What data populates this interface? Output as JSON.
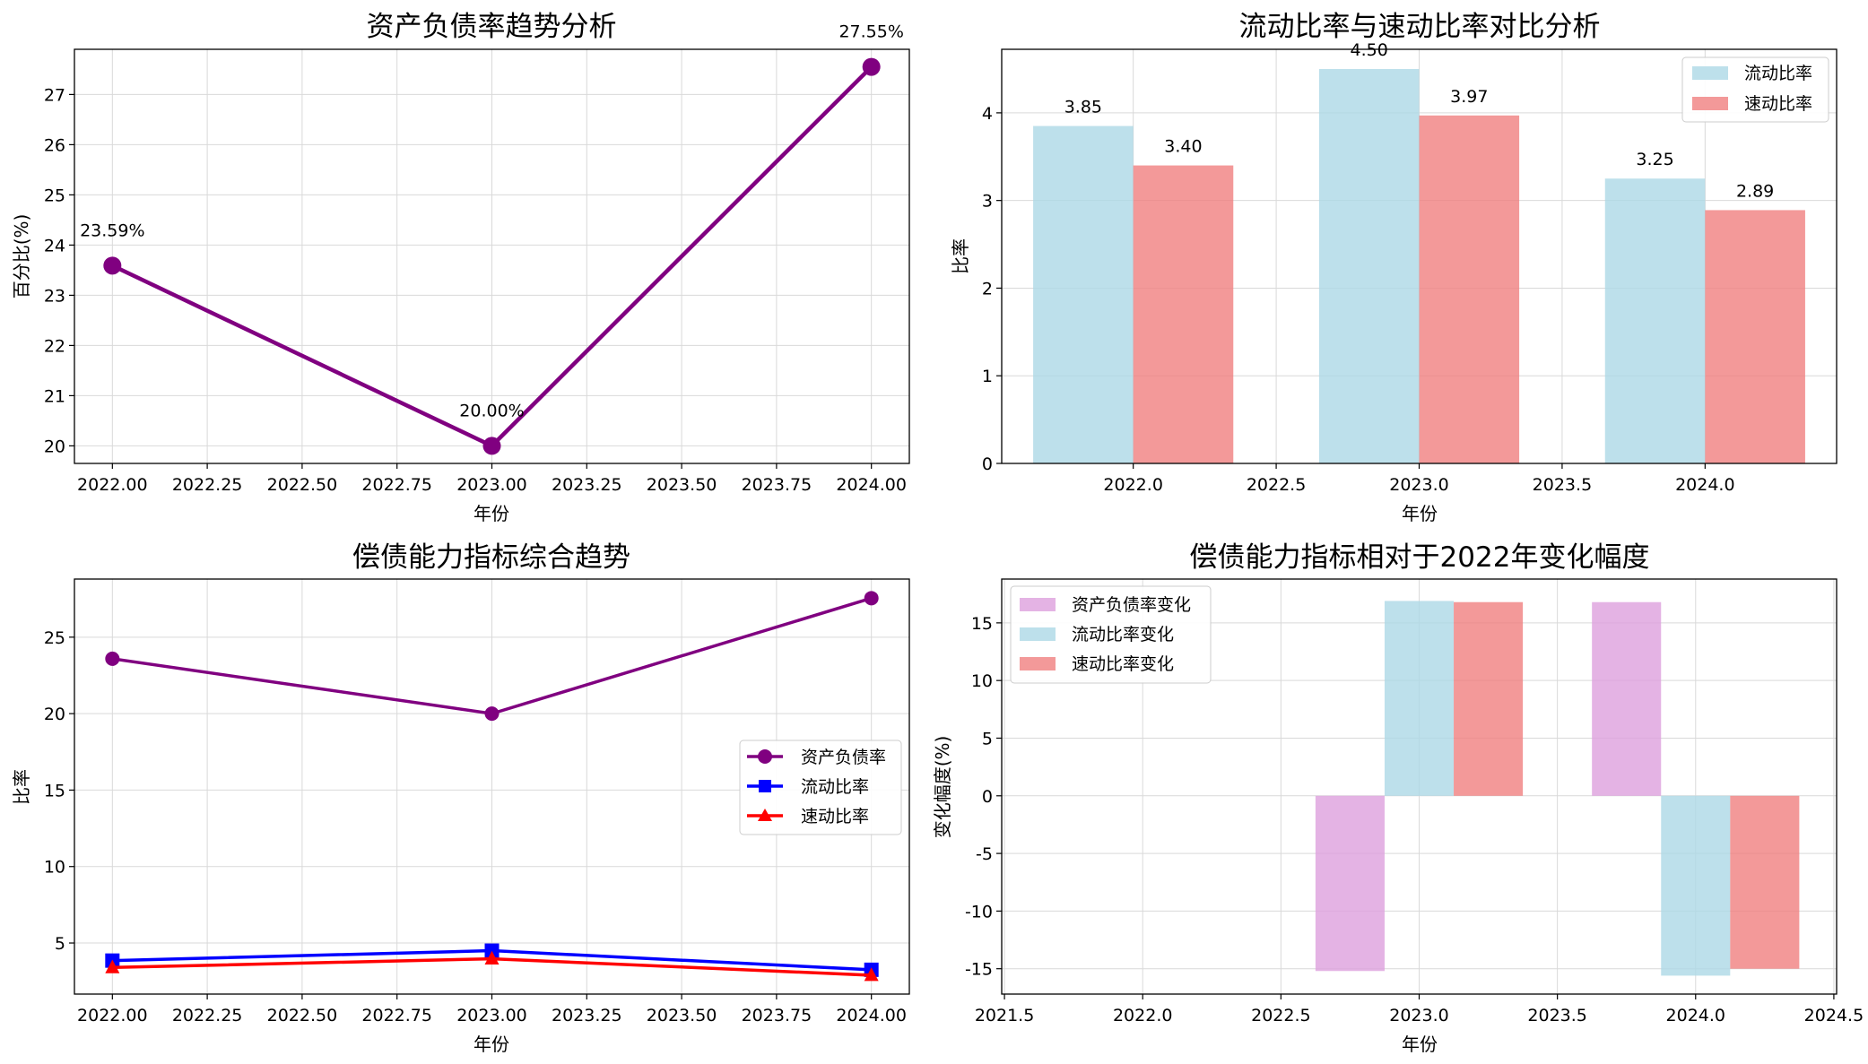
{
  "figure": {
    "colors": {
      "debt": "#800080",
      "current": "#0000ff",
      "quick": "#ff0000",
      "current_bar": "#add8e6",
      "quick_bar": "#f08080",
      "debt_bar": "#dda0dd"
    }
  },
  "chart_data": [
    {
      "type": "line",
      "title": "资产负债率趋势分析",
      "xlabel": "年份",
      "ylabel": "百分比(%)",
      "x": [
        2022,
        2023,
        2024
      ],
      "series": [
        {
          "values": [
            23.59,
            20.0,
            27.55
          ]
        }
      ],
      "data_labels": [
        "23.59%",
        "20.00%",
        "27.55%"
      ],
      "xlim": [
        2021.9,
        2024.1
      ],
      "ylim": [
        19.65,
        27.9
      ],
      "xticks": [
        2022.0,
        2022.25,
        2022.5,
        2022.75,
        2023.0,
        2023.25,
        2023.5,
        2023.75,
        2024.0
      ],
      "xtick_labels": [
        "2022.00",
        "2022.25",
        "2022.50",
        "2022.75",
        "2023.00",
        "2023.25",
        "2023.50",
        "2023.75",
        "2024.00"
      ],
      "yticks": [
        20,
        21,
        22,
        23,
        24,
        25,
        26,
        27
      ],
      "ytick_labels": [
        "20",
        "21",
        "22",
        "23",
        "24",
        "25",
        "26",
        "27"
      ],
      "grid": true,
      "marker": "circle",
      "color": "#800080"
    },
    {
      "type": "bar",
      "title": "流动比率与速动比率对比分析",
      "xlabel": "年份",
      "ylabel": "比率",
      "categories": [
        2022,
        2023,
        2024
      ],
      "bar_width": 0.35,
      "series": [
        {
          "name": "流动比率",
          "values": [
            3.85,
            4.5,
            3.25
          ],
          "labels": [
            "3.85",
            "4.50",
            "3.25"
          ],
          "color": "#add8e6",
          "offset": -0.175
        },
        {
          "name": "速动比率",
          "values": [
            3.4,
            3.97,
            2.89
          ],
          "labels": [
            "3.40",
            "3.97",
            "2.89"
          ],
          "color": "#f08080",
          "offset": 0.175
        }
      ],
      "xlim": [
        1021.54,
        1024.46
      ],
      "ylim": [
        0,
        4.725
      ],
      "xticks": [
        2022.0,
        2022.5,
        2023.0,
        2023.5,
        2024.0
      ],
      "xtick_labels": [
        "2022.0",
        "2022.5",
        "2023.0",
        "2023.5",
        "2024.0"
      ],
      "yticks": [
        0,
        1,
        2,
        3,
        4
      ],
      "ytick_labels": [
        "0",
        "1",
        "2",
        "3",
        "4"
      ],
      "grid": true,
      "legend": "top-right"
    },
    {
      "type": "line",
      "title": "偿债能力指标综合趋势",
      "xlabel": "年份",
      "ylabel": "比率",
      "x": [
        2022,
        2023,
        2024
      ],
      "series": [
        {
          "name": "资产负债率",
          "values": [
            23.59,
            20.0,
            27.55
          ],
          "color": "#800080",
          "marker": "circle"
        },
        {
          "name": "流动比率",
          "values": [
            3.85,
            4.5,
            3.25
          ],
          "color": "#0000ff",
          "marker": "square"
        },
        {
          "name": "速动比率",
          "values": [
            3.4,
            3.97,
            2.89
          ],
          "color": "#ff0000",
          "marker": "triangle"
        }
      ],
      "xlim": [
        2021.9,
        2024.1
      ],
      "ylim": [
        1.66,
        28.8
      ],
      "xticks": [
        2022.0,
        2022.25,
        2022.5,
        2022.75,
        2023.0,
        2023.25,
        2023.5,
        2023.75,
        2024.0
      ],
      "xtick_labels": [
        "2022.00",
        "2022.25",
        "2022.50",
        "2022.75",
        "2023.00",
        "2023.25",
        "2023.50",
        "2023.75",
        "2024.00"
      ],
      "yticks": [
        5,
        10,
        15,
        20,
        25
      ],
      "ytick_labels": [
        "5",
        "10",
        "15",
        "20",
        "25"
      ],
      "grid": true,
      "legend": "center-right"
    },
    {
      "type": "bar",
      "title": "偿债能力指标相对于2022年变化幅度",
      "xlabel": "年份",
      "ylabel": "变化幅度(%)",
      "categories": [
        2023,
        2024
      ],
      "bar_width": 0.25,
      "series": [
        {
          "name": "资产负债率变化",
          "values": [
            -15.2,
            16.8
          ],
          "color": "#dda0dd",
          "offset": -0.25
        },
        {
          "name": "流动比率变化",
          "values": [
            16.9,
            -15.6
          ],
          "color": "#add8e6",
          "offset": 0
        },
        {
          "name": "速动比率变化",
          "values": [
            16.8,
            -15.0
          ],
          "color": "#f08080",
          "offset": 0.25
        }
      ],
      "xlim": [
        2021.49,
        2024.51
      ],
      "ylim": [
        -17.2,
        18.8
      ],
      "xticks": [
        2021.5,
        2022.0,
        2022.5,
        2023.0,
        2023.5,
        2024.0,
        2024.5
      ],
      "xtick_labels": [
        "2021.5",
        "2022.0",
        "2022.5",
        "2023.0",
        "2023.5",
        "2024.0",
        "2024.5"
      ],
      "yticks": [
        -15,
        -10,
        -5,
        0,
        5,
        10,
        15
      ],
      "ytick_labels": [
        "-15",
        "-10",
        "-5",
        "0",
        "5",
        "10",
        "15"
      ],
      "grid": true,
      "legend": "top-left"
    }
  ]
}
